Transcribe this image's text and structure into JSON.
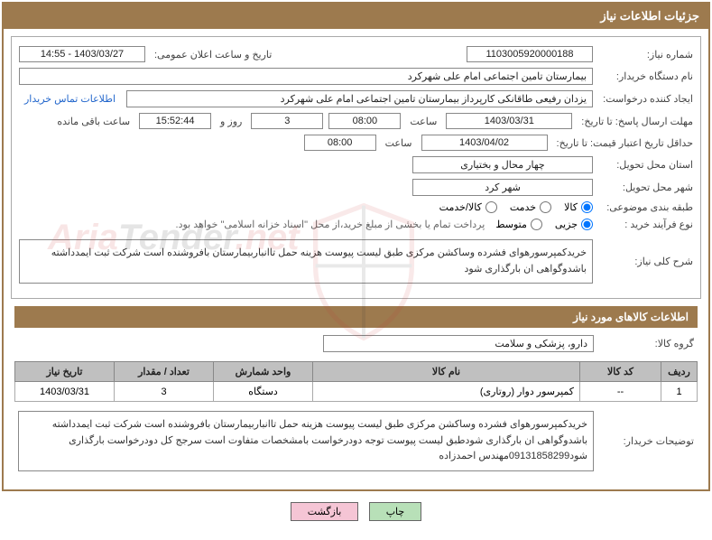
{
  "header": {
    "title": "جزئیات اطلاعات نیاز"
  },
  "fields": {
    "need_number": {
      "label": "شماره نیاز:",
      "value": "1103005920000188"
    },
    "announce_datetime": {
      "label": "تاریخ و ساعت اعلان عمومی:",
      "value": "1403/03/27 - 14:55"
    },
    "buyer_org": {
      "label": "نام دستگاه خریدار:",
      "value": "بیمارستان تامین اجتماعی امام علی شهرکرد"
    },
    "requester": {
      "label": "ایجاد کننده درخواست:",
      "value": "یزدان رفیعی طاقانکی کارپرداز بیمارستان تامین اجتماعی امام علی شهرکرد"
    },
    "contact_link": "اطلاعات تماس خریدار",
    "response_deadline": {
      "label": "مهلت ارسال پاسخ: تا تاریخ:",
      "date": "1403/03/31",
      "time_label": "ساعت",
      "time": "08:00"
    },
    "days_label": "روز و",
    "days_value": "3",
    "countdown": "15:52:44",
    "remaining_label": "ساعت باقی مانده",
    "price_validity": {
      "label": "حداقل تاریخ اعتبار قیمت: تا تاریخ:",
      "date": "1403/04/02",
      "time_label": "ساعت",
      "time": "08:00"
    },
    "delivery_province": {
      "label": "استان محل تحویل:",
      "value": "چهار محال و بختیاری"
    },
    "delivery_city": {
      "label": "شهر محل تحویل:",
      "value": "شهر کرد"
    },
    "subject_class": {
      "label": "طبقه بندی موضوعی:",
      "options": [
        {
          "label": "کالا",
          "checked": true
        },
        {
          "label": "خدمت",
          "checked": false
        },
        {
          "label": "کالا/خدمت",
          "checked": false
        }
      ]
    },
    "purchase_process": {
      "label": "نوع فرآیند خرید :",
      "options": [
        {
          "label": "جزیی",
          "checked": true
        },
        {
          "label": "متوسط",
          "checked": false
        }
      ],
      "note": "پرداخت تمام یا بخشی از مبلغ خرید،از محل \"اسناد خزانه اسلامی\" خواهد بود."
    },
    "need_summary": {
      "label": "شرح کلی نیاز:",
      "value": "خریدکمپرسورهوای فشرده وساکشن مرکزی طبق لیست پیوست هزینه حمل تاانباربیمارستان بافروشنده است شرکت ثبت ایمدداشته باشدوگواهی ان بارگذاری شود"
    }
  },
  "goods_section": {
    "title": "اطلاعات کالاهای مورد نیاز",
    "group": {
      "label": "گروه کالا:",
      "value": "دارو، پزشکی و سلامت"
    },
    "table": {
      "headers": [
        "ردیف",
        "کد کالا",
        "نام کالا",
        "واحد شمارش",
        "تعداد / مقدار",
        "تاریخ نیاز"
      ],
      "rows": [
        [
          "1",
          "--",
          "کمپرسور دوار (روتاری)",
          "دستگاه",
          "3",
          "1403/03/31"
        ]
      ]
    },
    "buyer_notes": {
      "label": "توضیحات خریدار:",
      "value": "خریدکمپرسورهوای فشرده وساکشن مرکزی طبق لیست پیوست هزینه حمل تاانباربیمارستان بافروشنده است شرکت ثبت ایمدداشته باشدوگواهی ان بارگذاری شودطبق لیست پیوست توجه دودرخواست بامشخصات متفاوت است سرجج کل دودرخواست بارگذاری شود09131858299مهندس احمدزاده"
    }
  },
  "buttons": {
    "print": "چاپ",
    "back": "بازگشت"
  },
  "watermark": {
    "t1": "Aria",
    "t2": "Tender",
    "t3": ".net"
  },
  "colors": {
    "brown": "#9d7a4e",
    "thead": "#c0c0c0"
  }
}
